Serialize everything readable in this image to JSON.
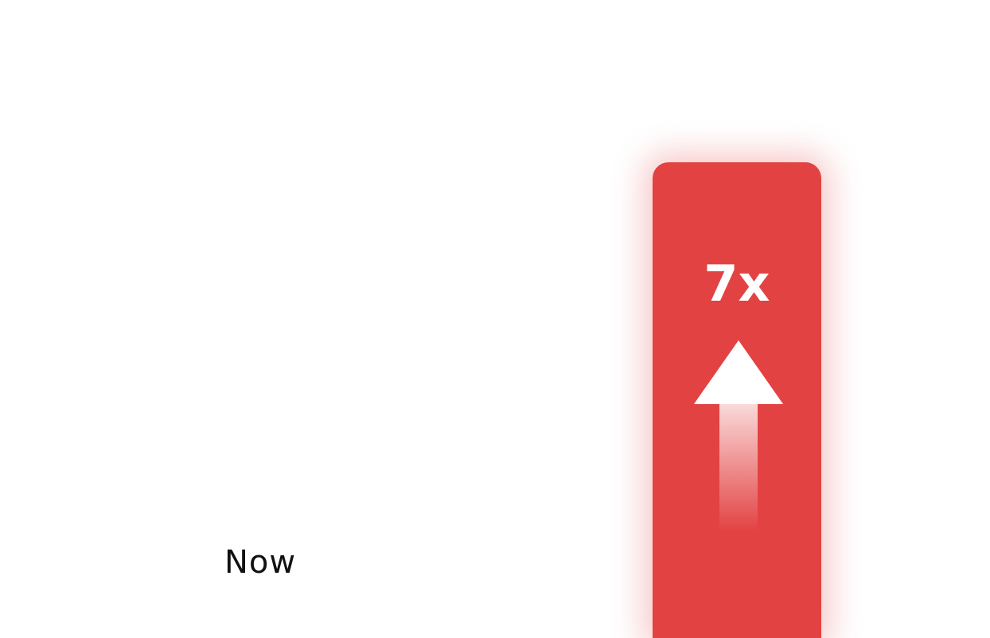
{
  "labels": {
    "now": "Now",
    "multiplier": "7x"
  }
}
